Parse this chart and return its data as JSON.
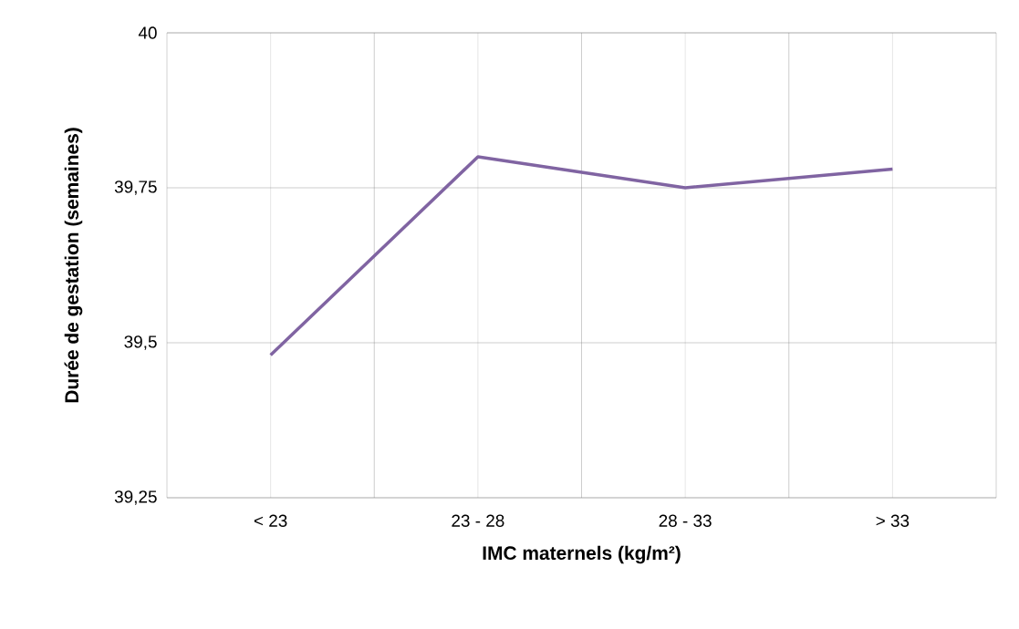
{
  "chart_data": {
    "type": "line",
    "xlabel": "IMC maternels (kg/m²)",
    "ylabel": "Durée de gestation (semaines)",
    "categories": [
      "< 23",
      "23 - 28",
      "28 - 33",
      "> 33"
    ],
    "series": [
      {
        "color": "#8064a2",
        "values": [
          39.48,
          39.8,
          39.75,
          39.78
        ]
      }
    ],
    "ylim": [
      39.25,
      40
    ],
    "yticks": [
      {
        "value": 39.25,
        "label": "39,25"
      },
      {
        "value": 39.5,
        "label": "39,5"
      },
      {
        "value": 39.75,
        "label": "39,75"
      },
      40
    ],
    "grid": true,
    "marker": "none",
    "line_style": "solid"
  }
}
